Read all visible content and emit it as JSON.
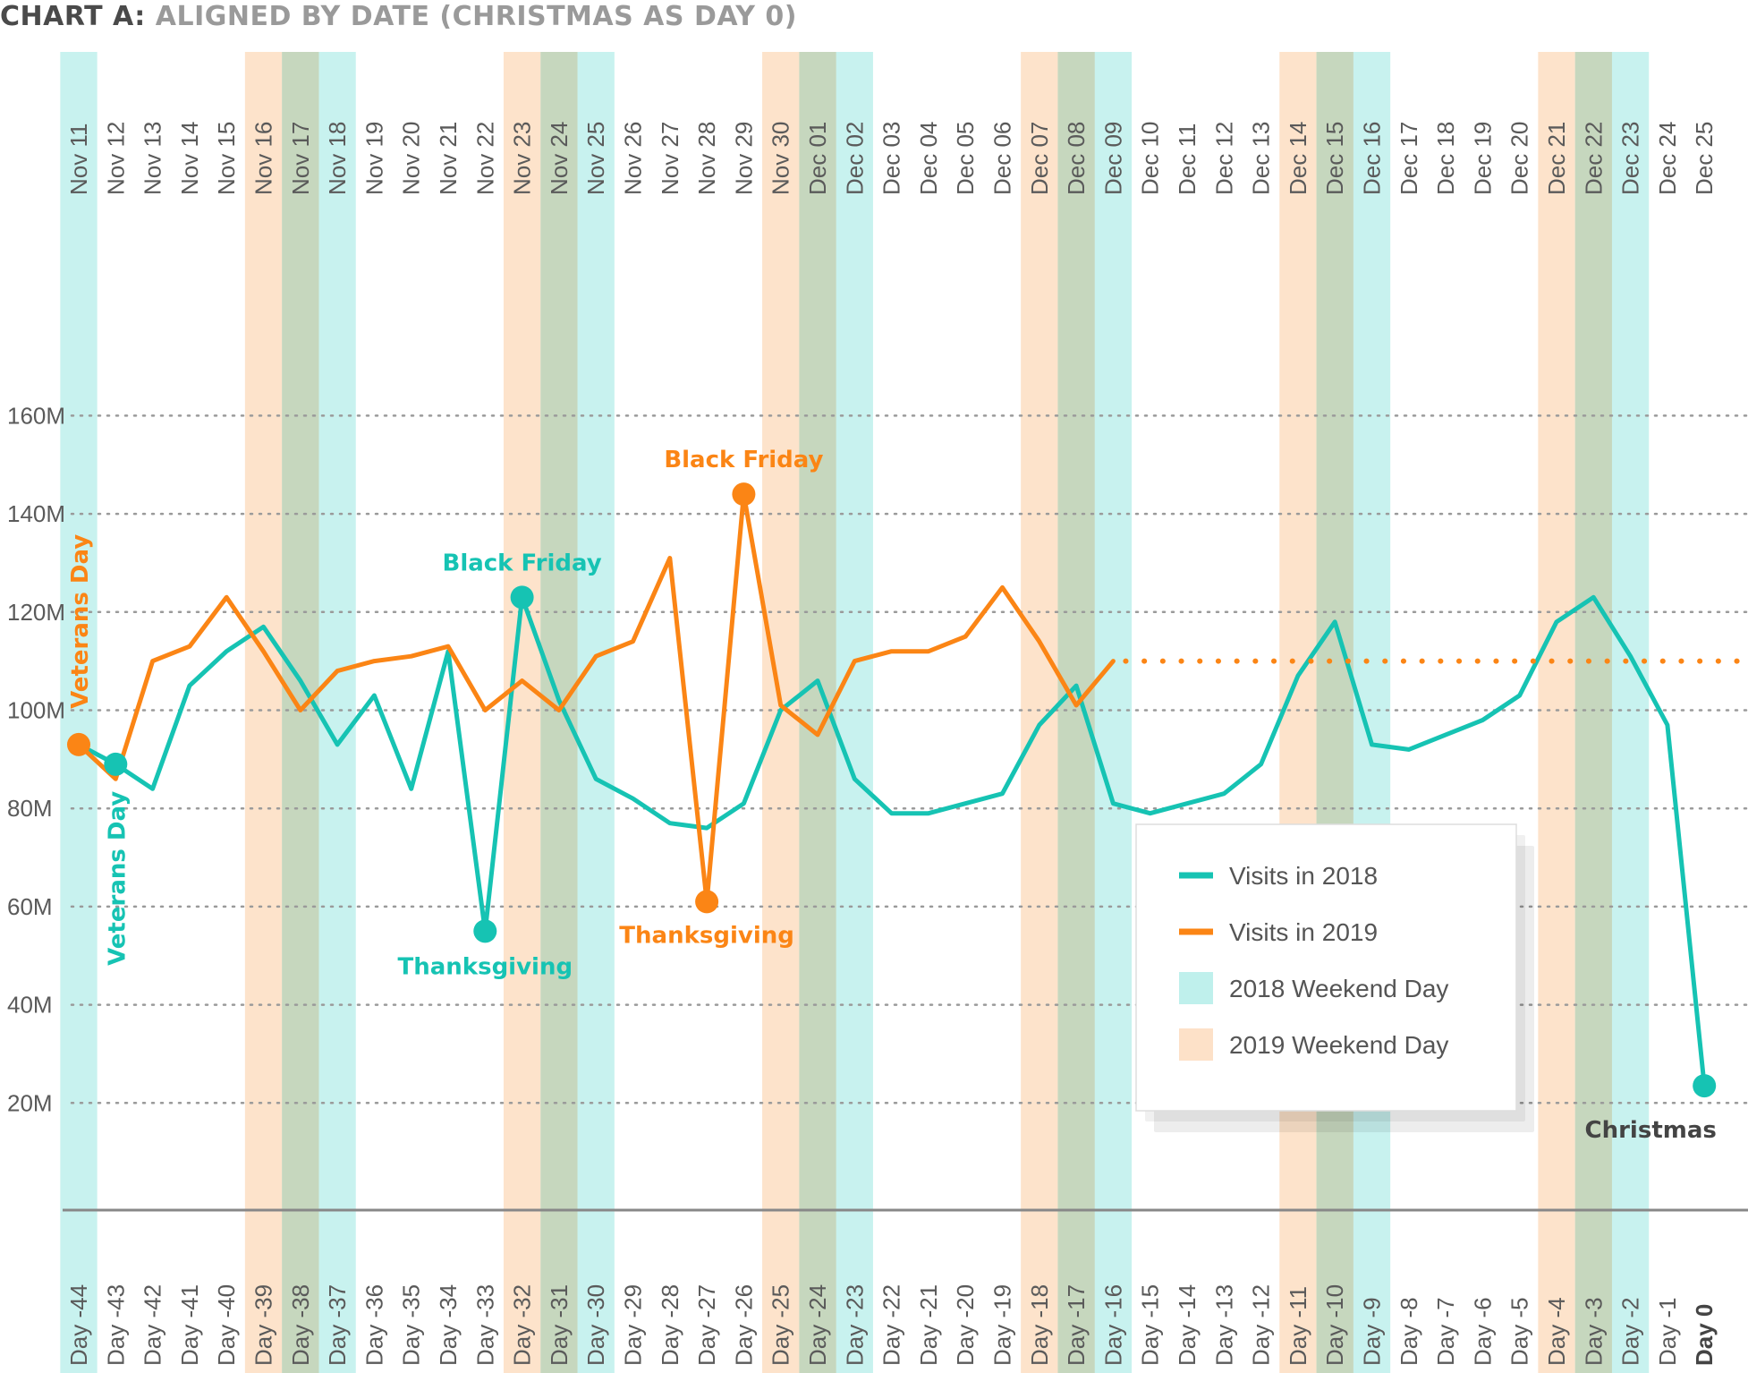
{
  "title": {
    "prefix": "CHART A:",
    "main": "ALIGNED BY DATE (CHRISTMAS AS DAY 0)"
  },
  "colors": {
    "series_2018": "#16c3b3",
    "series_2019": "#fb8515",
    "weekend_2018": "#bff0ec",
    "weekend_2019": "#fde1c8",
    "grid": "#9a9a9a",
    "axis": "#888888",
    "christmas_label": "#444444"
  },
  "legend": {
    "placement": "lower-right",
    "items": [
      {
        "label": "Visits in 2018",
        "kind": "line",
        "color": "#16c3b3"
      },
      {
        "label": "Visits in 2019",
        "kind": "line",
        "color": "#fb8515"
      },
      {
        "label": "2018 Weekend Day",
        "kind": "swatch",
        "color": "#bff0ec"
      },
      {
        "label": "2019 Weekend Day",
        "kind": "swatch",
        "color": "#fde1c8"
      }
    ]
  },
  "chart_data": {
    "type": "line",
    "title": "ALIGNED BY DATE (CHRISTMAS AS DAY 0)",
    "xlabel": "",
    "ylabel": "",
    "ylim": [
      0,
      160000000
    ],
    "y_ticks": [
      {
        "value": 20000000,
        "label": "20M"
      },
      {
        "value": 40000000,
        "label": "40M"
      },
      {
        "value": 60000000,
        "label": "60M"
      },
      {
        "value": 80000000,
        "label": "80M"
      },
      {
        "value": 100000000,
        "label": "100M"
      },
      {
        "value": 120000000,
        "label": "120M"
      },
      {
        "value": 140000000,
        "label": "140M"
      },
      {
        "value": 160000000,
        "label": "160M"
      }
    ],
    "grid": "horizontal-dotted",
    "x_dates": [
      "Nov 11",
      "Nov 12",
      "Nov 13",
      "Nov 14",
      "Nov 15",
      "Nov 16",
      "Nov 17",
      "Nov 18",
      "Nov 19",
      "Nov 20",
      "Nov 21",
      "Nov 22",
      "Nov 23",
      "Nov 24",
      "Nov 25",
      "Nov 26",
      "Nov 27",
      "Nov 28",
      "Nov 29",
      "Nov 30",
      "Dec 01",
      "Dec 02",
      "Dec 03",
      "Dec 04",
      "Dec 05",
      "Dec 06",
      "Dec 07",
      "Dec 08",
      "Dec 09",
      "Dec 10",
      "Dec 11",
      "Dec 12",
      "Dec 13",
      "Dec 14",
      "Dec 15",
      "Dec 16",
      "Dec 17",
      "Dec 18",
      "Dec 19",
      "Dec 20",
      "Dec 21",
      "Dec 22",
      "Dec 23",
      "Dec 24",
      "Dec 25"
    ],
    "x_days": [
      "Day -44",
      "Day -43",
      "Day -42",
      "Day -41",
      "Day -40",
      "Day -39",
      "Day -38",
      "Day -37",
      "Day -36",
      "Day -35",
      "Day -34",
      "Day -33",
      "Day -32",
      "Day -31",
      "Day -30",
      "Day -29",
      "Day -28",
      "Day -27",
      "Day -26",
      "Day -25",
      "Day -24",
      "Day -23",
      "Day -22",
      "Day -21",
      "Day -20",
      "Day -19",
      "Day -18",
      "Day -17",
      "Day -16",
      "Day -15",
      "Day -14",
      "Day -13",
      "Day -12",
      "Day -11",
      "Day -10",
      "Day -9",
      "Day -8",
      "Day -7",
      "Day -6",
      "Day -5",
      "Day -4",
      "Day -3",
      "Day -2",
      "Day -1",
      "Day 0"
    ],
    "weekends_2018": [
      0,
      6,
      7,
      13,
      14,
      20,
      21,
      27,
      28,
      34,
      35,
      41,
      42
    ],
    "weekends_2019": [
      5,
      6,
      12,
      13,
      19,
      20,
      26,
      27,
      33,
      34,
      40,
      41
    ],
    "series": [
      {
        "name": "Visits in 2018",
        "color": "#16c3b3",
        "values": [
          93,
          89,
          84,
          105,
          112,
          117,
          106,
          93,
          103,
          84,
          112,
          55,
          123,
          102,
          86,
          82,
          77,
          76,
          81,
          100,
          106,
          86,
          79,
          79,
          81,
          83,
          97,
          105,
          81,
          79,
          81,
          83,
          89,
          107,
          118,
          93,
          92,
          95,
          98,
          103,
          118,
          123,
          111,
          97,
          23.5
        ]
      },
      {
        "name": "Visits in 2019",
        "color": "#fb8515",
        "values": [
          93,
          86,
          110,
          113,
          123,
          112,
          100,
          108,
          110,
          111,
          113,
          100,
          106,
          100,
          111,
          114,
          131,
          61,
          144,
          101,
          95,
          110,
          112,
          112,
          115,
          125,
          114,
          101,
          110
        ]
      }
    ],
    "projection_2019": {
      "value": 110,
      "from_index": 28,
      "to_index": 44
    },
    "value_units": "M",
    "annotations": [
      {
        "label": "Veterans Day",
        "series": 1,
        "index": 0,
        "marker": true
      },
      {
        "label": "Veterans Day",
        "series": 0,
        "index": 1,
        "marker": true
      },
      {
        "label": "Black Friday",
        "series": 0,
        "index": 12,
        "marker": true
      },
      {
        "label": "Thanksgiving",
        "series": 0,
        "index": 11,
        "marker": true
      },
      {
        "label": "Black Friday",
        "series": 1,
        "index": 18,
        "marker": true
      },
      {
        "label": "Thanksgiving",
        "series": 1,
        "index": 17,
        "marker": true
      },
      {
        "label": "Christmas",
        "series": 0,
        "index": 44,
        "marker": true
      }
    ]
  }
}
